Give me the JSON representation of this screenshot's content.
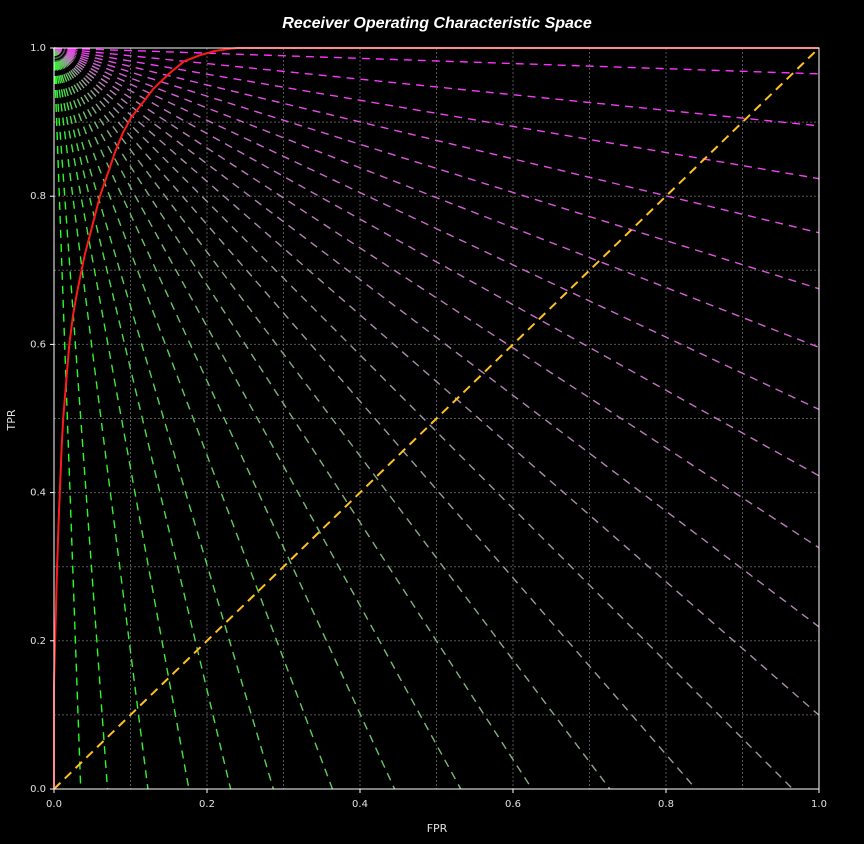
{
  "chart_data": {
    "type": "line",
    "title": "Receiver Operating Characteristic Space",
    "xlabel": "FPR",
    "ylabel": "TPR",
    "xlim": [
      0,
      1
    ],
    "ylim": [
      0,
      1
    ],
    "x_ticks": [
      "0.0",
      "0.2",
      "0.4",
      "0.6",
      "0.8",
      "1.0"
    ],
    "y_ticks": [
      "0.0",
      "0.2",
      "0.4",
      "0.6",
      "0.8",
      "1.0"
    ],
    "grid": true,
    "legend": "none",
    "colors": {
      "background": "#000000",
      "roc_curve": "#ff1a1a",
      "diagonal": "#ffc020",
      "iso_near_tpr_axis": "#22ff22",
      "iso_mid": "#9a9a9a",
      "iso_near_fpr_axis": "#ff33ff",
      "grid": "#555555",
      "frame": "#ffffff"
    },
    "roc_curve": {
      "fpr": [
        0.0,
        0.0,
        0.002,
        0.004,
        0.006,
        0.008,
        0.01,
        0.012,
        0.016,
        0.02,
        0.025,
        0.03,
        0.04,
        0.05,
        0.06,
        0.07,
        0.08,
        0.09,
        0.1,
        0.115,
        0.13,
        0.15,
        0.17,
        0.19,
        0.21,
        0.23,
        0.24,
        1.0
      ],
      "tpr": [
        0.0,
        0.14,
        0.22,
        0.3,
        0.36,
        0.41,
        0.46,
        0.5,
        0.55,
        0.6,
        0.64,
        0.67,
        0.72,
        0.76,
        0.8,
        0.83,
        0.86,
        0.885,
        0.905,
        0.925,
        0.945,
        0.965,
        0.982,
        0.99,
        0.996,
        0.999,
        1.0,
        1.0
      ]
    },
    "diagonal": {
      "x": [
        0,
        1
      ],
      "y": [
        0,
        1
      ]
    },
    "iso_performance_lines": {
      "description_values": "lines from (0,1) with slope s = tan(angle), angles from near-vertical to near-horizontal",
      "angles_deg": [
        -88,
        -86,
        -83,
        -80,
        -77,
        -74,
        -70,
        -66,
        -62,
        -58,
        -54,
        -50,
        -46,
        -42,
        -38,
        -34,
        -30,
        -26,
        -22,
        -18,
        -14,
        -10,
        -6,
        -2
      ],
      "radii": [
        0.006,
        0.01,
        0.014,
        0.018,
        0.022,
        0.026,
        0.03
      ]
    }
  }
}
